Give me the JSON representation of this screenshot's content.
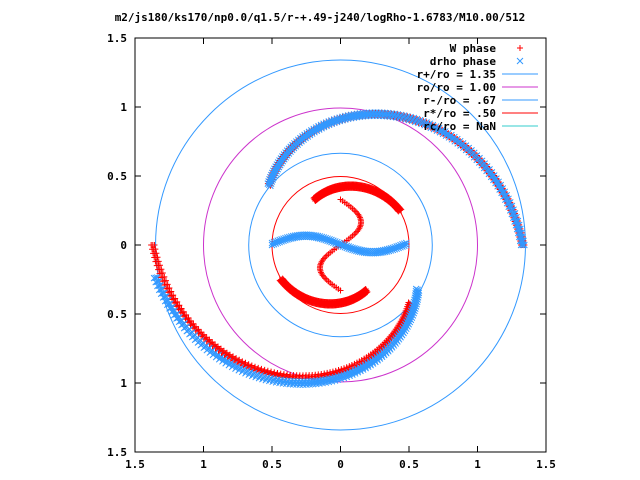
{
  "chart_data": {
    "type": "scatter",
    "title": "m2/js180/ks170/np0.0/q1.5/r-+.49-j240/logRho-1.6783/M10.00/512",
    "xlim": [
      -1.5,
      1.5
    ],
    "ylim": [
      -1.5,
      1.5
    ],
    "x_tick_labels": [
      "1.5",
      "1",
      "0.5",
      "0",
      "0.5",
      "1",
      "1.5"
    ],
    "y_tick_labels": [
      "1.5",
      "1",
      "0.5",
      "0",
      "0.5",
      "1",
      "1.5"
    ],
    "x_tick_values": [
      -1.5,
      -1,
      -0.5,
      0,
      0.5,
      1,
      1.5
    ],
    "y_tick_values": [
      1.5,
      1,
      0.5,
      0,
      -0.5,
      -1,
      -1.5
    ],
    "grid": false,
    "legend_position": "top-right",
    "series": [
      {
        "name": "W phase",
        "kind": "points",
        "marker": "plus",
        "color": "#ff0000",
        "arms": [
          {
            "theta_deg_start": 180,
            "theta_deg_end": 320,
            "r_start": 1.37,
            "r_end": 0.66
          },
          {
            "theta_deg_start": 0,
            "theta_deg_end": 140,
            "r_start": 1.33,
            "r_end": 0.68
          },
          {
            "theta_deg_start": 210,
            "theta_deg_end": 300,
            "r_start": 0.5,
            "r_end": 0.38
          },
          {
            "theta_deg_start": 30,
            "theta_deg_end": 120,
            "r_start": 0.5,
            "r_end": 0.38
          }
        ],
        "inner_s": {
          "y_top": 0.33,
          "y_bottom": -0.33,
          "x_span": 0.25
        }
      },
      {
        "name": "drho phase",
        "kind": "points",
        "marker": "cross",
        "color": "#3399ff",
        "arms": [
          {
            "theta_deg_start": 190,
            "theta_deg_end": 330,
            "r_start": 1.37,
            "r_end": 0.65
          },
          {
            "theta_deg_start": 0,
            "theta_deg_end": 140,
            "r_start": 1.33,
            "r_end": 0.68
          }
        ],
        "inner_bar": {
          "x_start": -0.5,
          "x_end": 0.48,
          "y_mid": 0.0
        }
      },
      {
        "name": "r+/ro = 1.35",
        "kind": "circle",
        "r": 1.35,
        "color": "#3399ff"
      },
      {
        "name": "ro/ro = 1.00",
        "kind": "circle",
        "r": 1.0,
        "color": "#cc33cc"
      },
      {
        "name": "r-/ro = .67",
        "kind": "circle",
        "r": 0.67,
        "color": "#3399ff"
      },
      {
        "name": "r*/ro = .50",
        "kind": "circle",
        "r": 0.5,
        "color": "#ff0000"
      },
      {
        "name": "rc/ro = NaN",
        "kind": "circle",
        "r": null,
        "color": "#33cccc"
      }
    ]
  }
}
